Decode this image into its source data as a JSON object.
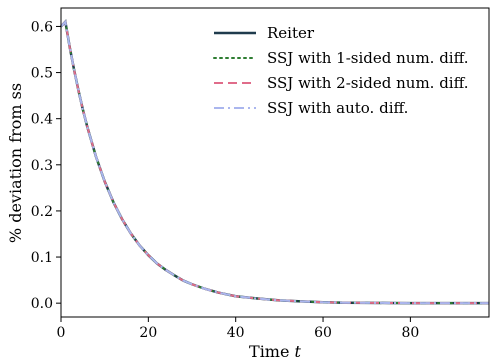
{
  "chart_data": {
    "type": "line",
    "xlabel": "Time",
    "xlabel_var": "t",
    "ylabel": "% deviation from ss",
    "xlim": [
      0,
      98
    ],
    "ylim": [
      -0.03,
      0.64
    ],
    "xticks": [
      0,
      20,
      40,
      60,
      80
    ],
    "yticks": [
      0.0,
      0.1,
      0.2,
      0.3,
      0.4,
      0.5,
      0.6
    ],
    "ytick_labels": [
      "0.0",
      "0.1",
      "0.2",
      "0.3",
      "0.4",
      "0.5",
      "0.6"
    ],
    "legend_position": "top-right",
    "x": [
      0,
      1,
      2,
      3,
      4,
      5,
      6,
      8,
      10,
      12,
      14,
      16,
      18,
      20,
      22,
      24,
      26,
      28,
      30,
      33,
      36,
      40,
      45,
      50,
      55,
      60,
      65,
      70,
      75,
      80,
      85,
      90,
      95,
      98
    ],
    "series": [
      {
        "name": "Reiter",
        "color": "#1f3b4d",
        "style": "solid",
        "values": [
          0.6,
          0.61,
          0.555,
          0.506,
          0.461,
          0.42,
          0.383,
          0.318,
          0.264,
          0.219,
          0.182,
          0.151,
          0.125,
          0.104,
          0.086,
          0.072,
          0.06,
          0.049,
          0.041,
          0.031,
          0.023,
          0.015,
          0.01,
          0.006,
          0.004,
          0.002,
          0.001,
          0.0007,
          0.0004,
          0.0002,
          0.0001,
          0.0001,
          0.0,
          0.0
        ]
      },
      {
        "name": "SSJ with 1-sided num. diff.",
        "color": "#2e7d32",
        "style": "dotted",
        "values": [
          0.6,
          0.61,
          0.555,
          0.506,
          0.461,
          0.42,
          0.383,
          0.318,
          0.264,
          0.219,
          0.182,
          0.151,
          0.125,
          0.104,
          0.086,
          0.072,
          0.06,
          0.049,
          0.041,
          0.031,
          0.023,
          0.015,
          0.01,
          0.006,
          0.004,
          0.002,
          0.001,
          0.0007,
          0.0004,
          0.0002,
          0.0001,
          0.0001,
          0.0,
          0.0
        ]
      },
      {
        "name": "SSJ with 2-sided num. diff.",
        "color": "#e06c8a",
        "style": "dashed",
        "values": [
          0.6,
          0.61,
          0.555,
          0.506,
          0.461,
          0.42,
          0.383,
          0.318,
          0.264,
          0.219,
          0.182,
          0.151,
          0.125,
          0.104,
          0.086,
          0.072,
          0.06,
          0.049,
          0.041,
          0.031,
          0.023,
          0.015,
          0.01,
          0.006,
          0.004,
          0.002,
          0.001,
          0.0007,
          0.0004,
          0.0002,
          0.0001,
          0.0001,
          0.0,
          0.0
        ]
      },
      {
        "name": "SSJ with auto. diff.",
        "color": "#aab6ee",
        "style": "dashdot",
        "values": [
          0.6,
          0.61,
          0.555,
          0.506,
          0.461,
          0.42,
          0.383,
          0.318,
          0.264,
          0.219,
          0.182,
          0.151,
          0.125,
          0.104,
          0.086,
          0.072,
          0.06,
          0.049,
          0.041,
          0.031,
          0.023,
          0.015,
          0.01,
          0.006,
          0.004,
          0.002,
          0.001,
          0.0007,
          0.0004,
          0.0002,
          0.0001,
          0.0001,
          0.0,
          0.0
        ]
      }
    ]
  }
}
